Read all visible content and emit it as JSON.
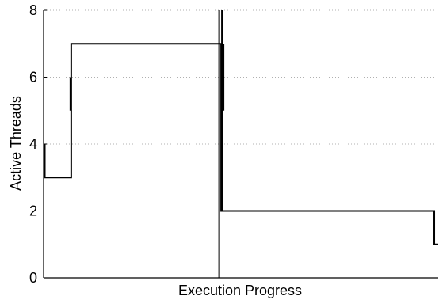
{
  "chart_data": {
    "type": "line",
    "title": "",
    "xlabel": "Execution Progress",
    "ylabel": "Active Threads",
    "xlim": [
      0,
      100
    ],
    "ylim": [
      0,
      8
    ],
    "yticks": [
      "0",
      "2",
      "4",
      "6",
      "8"
    ],
    "grid": true,
    "series": [
      {
        "step_points": [
          [
            0,
            3
          ],
          [
            7,
            3
          ],
          [
            7,
            7
          ],
          [
            45,
            7
          ],
          [
            45,
            2
          ],
          [
            99,
            2
          ],
          [
            99,
            1
          ],
          [
            100,
            1
          ]
        ],
        "spikes": [
          {
            "x": 0.3,
            "from": 3,
            "to": 4
          },
          {
            "x": 6.8,
            "from": 5,
            "to": 6
          },
          {
            "x": 44.5,
            "from": 0,
            "to": 8
          },
          {
            "x": 45.2,
            "from": 2,
            "to": 8
          },
          {
            "x": 45.6,
            "from": 5,
            "to": 7
          }
        ]
      }
    ]
  }
}
